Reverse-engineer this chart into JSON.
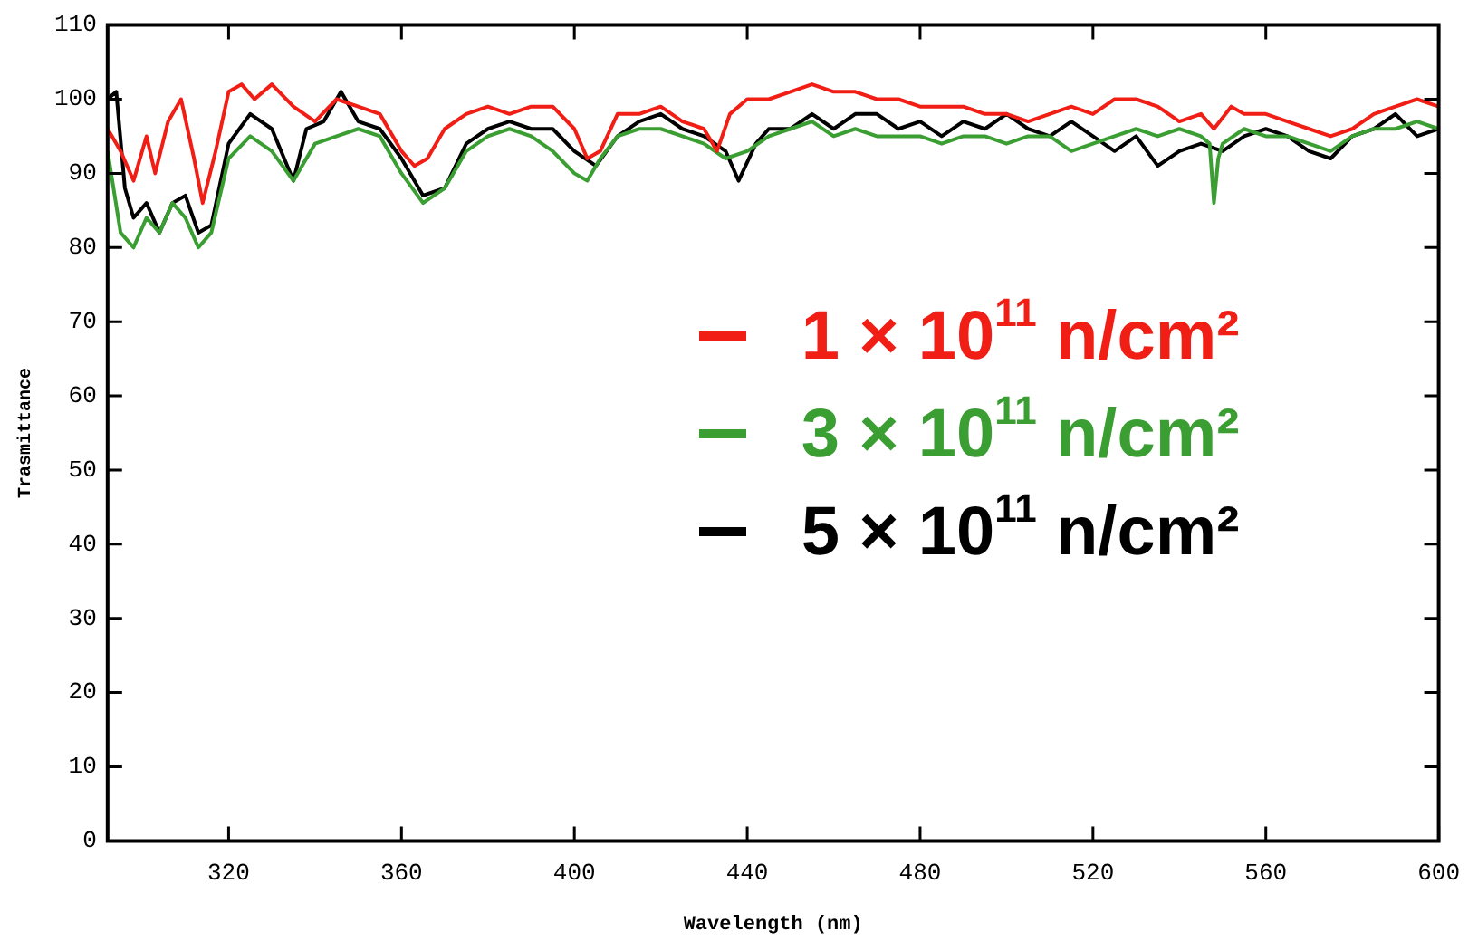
{
  "chart_data": {
    "type": "line",
    "xlabel": "Wavelength (nm)",
    "ylabel": "Trasmittance",
    "xlim": [
      292,
      600
    ],
    "xticks": [
      320,
      360,
      400,
      440,
      480,
      520,
      560,
      600
    ],
    "ylim": [
      0,
      110
    ],
    "yticks": [
      0,
      10,
      20,
      30,
      40,
      50,
      60,
      70,
      80,
      90,
      100,
      110
    ],
    "grid": false,
    "legend": "right",
    "marker": "none",
    "line_style": "solid",
    "series": [
      {
        "name": "1 × 10$^{11}$ n/cm²",
        "color": "#f01e14",
        "x": [
          292,
          295,
          298,
          301,
          303,
          306,
          309,
          312,
          314,
          317,
          320,
          323,
          326,
          330,
          335,
          340,
          345,
          350,
          355,
          360,
          363,
          366,
          370,
          375,
          380,
          385,
          390,
          395,
          400,
          403,
          406,
          410,
          415,
          420,
          425,
          430,
          433,
          436,
          440,
          445,
          450,
          455,
          460,
          465,
          470,
          475,
          480,
          485,
          490,
          495,
          500,
          505,
          510,
          515,
          520,
          525,
          530,
          535,
          540,
          545,
          548,
          552,
          555,
          560,
          565,
          570,
          575,
          580,
          585,
          590,
          595,
          600
        ],
        "values": [
          96,
          93,
          89,
          95,
          90,
          97,
          100,
          92,
          86,
          93,
          101,
          102,
          100,
          102,
          99,
          97,
          100,
          99,
          98,
          93,
          91,
          92,
          96,
          98,
          99,
          98,
          99,
          99,
          96,
          92,
          93,
          98,
          98,
          99,
          97,
          96,
          93,
          98,
          100,
          100,
          101,
          102,
          101,
          101,
          100,
          100,
          99,
          99,
          99,
          98,
          98,
          97,
          98,
          99,
          98,
          100,
          100,
          99,
          97,
          98,
          96,
          99,
          98,
          98,
          97,
          96,
          95,
          96,
          98,
          99,
          100,
          99
        ]
      },
      {
        "name": "3 × 10$^{11}$ n/cm²",
        "color": "#3a9e32",
        "x": [
          292,
          295,
          298,
          301,
          304,
          307,
          310,
          313,
          316,
          320,
          325,
          330,
          335,
          340,
          345,
          350,
          355,
          360,
          365,
          370,
          375,
          380,
          385,
          390,
          395,
          400,
          403,
          406,
          410,
          415,
          420,
          425,
          430,
          435,
          440,
          445,
          450,
          455,
          460,
          465,
          470,
          475,
          480,
          485,
          490,
          495,
          500,
          505,
          510,
          515,
          520,
          525,
          530,
          535,
          540,
          545,
          547,
          548,
          549,
          550,
          555,
          560,
          565,
          570,
          575,
          580,
          585,
          590,
          595,
          600
        ],
        "values": [
          93,
          82,
          80,
          84,
          82,
          86,
          84,
          80,
          82,
          92,
          95,
          93,
          89,
          94,
          95,
          96,
          95,
          90,
          86,
          88,
          93,
          95,
          96,
          95,
          93,
          90,
          89,
          92,
          95,
          96,
          96,
          95,
          94,
          92,
          93,
          95,
          96,
          97,
          95,
          96,
          95,
          95,
          95,
          94,
          95,
          95,
          94,
          95,
          95,
          93,
          94,
          95,
          96,
          95,
          96,
          95,
          94,
          86,
          92,
          94,
          96,
          95,
          95,
          94,
          93,
          95,
          96,
          96,
          97,
          96
        ]
      },
      {
        "name": "5 × 10$^{11}$ n/cm²",
        "color": "#000000",
        "x": [
          292,
          294,
          296,
          298,
          301,
          304,
          307,
          310,
          313,
          316,
          320,
          325,
          330,
          335,
          338,
          342,
          346,
          350,
          355,
          360,
          365,
          370,
          375,
          380,
          385,
          390,
          395,
          400,
          405,
          410,
          415,
          420,
          425,
          430,
          435,
          438,
          442,
          445,
          450,
          455,
          460,
          465,
          470,
          475,
          480,
          485,
          490,
          495,
          500,
          505,
          510,
          515,
          520,
          525,
          530,
          535,
          540,
          545,
          550,
          555,
          560,
          565,
          570,
          575,
          580,
          585,
          590,
          595,
          600
        ],
        "values": [
          100,
          101,
          88,
          84,
          86,
          82,
          86,
          87,
          82,
          83,
          94,
          98,
          96,
          89,
          96,
          97,
          101,
          97,
          96,
          92,
          87,
          88,
          94,
          96,
          97,
          96,
          96,
          93,
          91,
          95,
          97,
          98,
          96,
          95,
          93,
          89,
          94,
          96,
          96,
          98,
          96,
          98,
          98,
          96,
          97,
          95,
          97,
          96,
          98,
          96,
          95,
          97,
          95,
          93,
          95,
          91,
          93,
          94,
          93,
          95,
          96,
          95,
          93,
          92,
          95,
          96,
          98,
          95,
          96
        ]
      }
    ]
  }
}
